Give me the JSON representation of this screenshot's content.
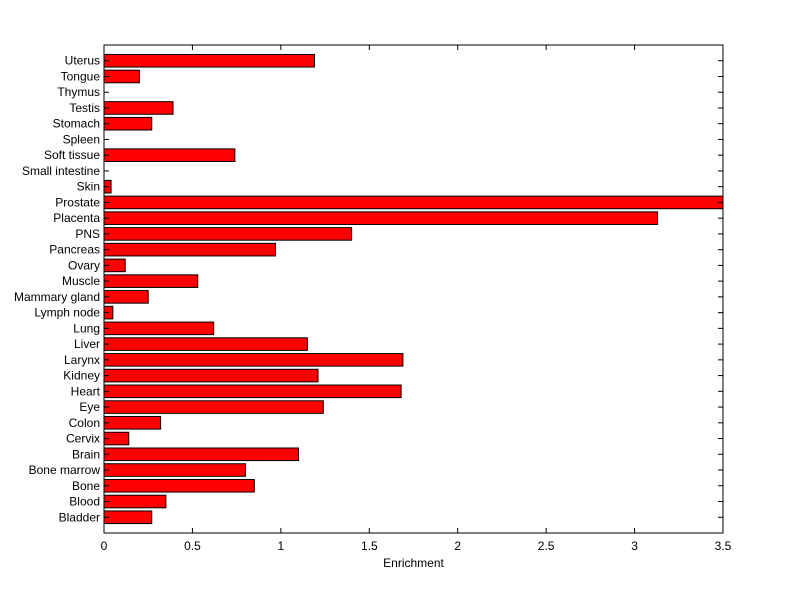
{
  "chart_data": {
    "type": "bar",
    "orientation": "horizontal",
    "title": "",
    "xlabel": "Enrichment",
    "ylabel": "",
    "xlim": [
      0,
      3.5
    ],
    "xticks": [
      0,
      0.5,
      1,
      1.5,
      2,
      2.5,
      3,
      3.5
    ],
    "xtick_labels": [
      "0",
      "0.5",
      "1",
      "1.5",
      "2",
      "2.5",
      "3",
      "3.5"
    ],
    "grid": false,
    "legend": "none",
    "bar_color": "#ff0000",
    "edge_color": "#000000",
    "categories": [
      "Bladder",
      "Blood",
      "Bone",
      "Bone marrow",
      "Brain",
      "Cervix",
      "Colon",
      "Eye",
      "Heart",
      "Kidney",
      "Larynx",
      "Liver",
      "Lung",
      "Lymph node",
      "Mammary gland",
      "Muscle",
      "Ovary",
      "Pancreas",
      "PNS",
      "Placenta",
      "Prostate",
      "Skin",
      "Small intestine",
      "Soft tissue",
      "Spleen",
      "Stomach",
      "Testis",
      "Thymus",
      "Tongue",
      "Uterus"
    ],
    "values": [
      0.27,
      0.35,
      0.85,
      0.8,
      1.1,
      0.14,
      0.32,
      1.24,
      1.68,
      1.21,
      1.69,
      1.15,
      0.62,
      0.05,
      0.25,
      0.53,
      0.12,
      0.97,
      1.4,
      3.13,
      3.5,
      0.04,
      0.0,
      0.74,
      0.0,
      0.27,
      0.39,
      0.0,
      0.2,
      1.19
    ]
  }
}
